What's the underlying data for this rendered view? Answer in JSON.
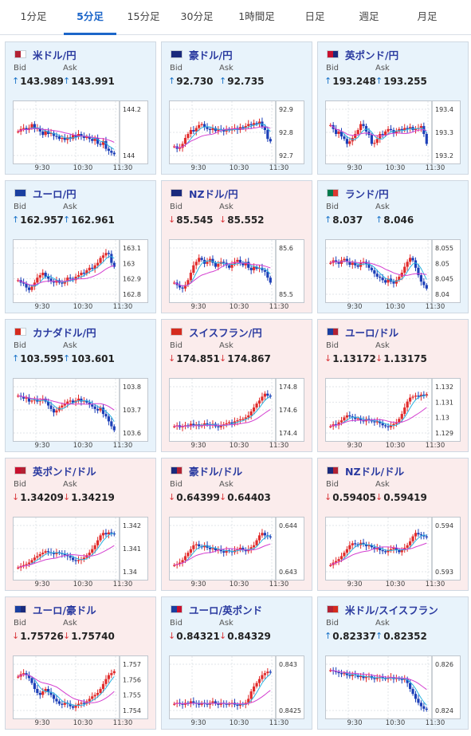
{
  "tabs": [
    {
      "label": "1分足",
      "active": false
    },
    {
      "label": "5分足",
      "active": true
    },
    {
      "label": "15分足",
      "active": false
    },
    {
      "label": "30分足",
      "active": false
    },
    {
      "label": "1時間足",
      "active": false
    },
    {
      "label": "日足",
      "active": false
    },
    {
      "label": "週足",
      "active": false
    },
    {
      "label": "月足",
      "active": false
    }
  ],
  "labels": {
    "bid": "Bid",
    "ask": "Ask"
  },
  "colors": {
    "up_bg": "#e8f3fb",
    "down_bg": "#fbecec",
    "candle_up": "#e12c2c",
    "candle_down": "#1c3fb8",
    "ma_short": "#2bb2e0",
    "ma_long": "#d43fd0",
    "tab_accent": "#1c66c9"
  },
  "pairs": [
    {
      "name": "米ドル/円",
      "flag": [
        "#b22234",
        "#ffffff"
      ],
      "trend": "up",
      "bid_dir": "up",
      "bid": "143.989",
      "ask_dir": "up",
      "ask": "143.991",
      "chart": {
        "yticks": [
          "144.2",
          "144"
        ],
        "xticks": [
          "9:30",
          "10:30",
          "11:30"
        ],
        "shape": [
          0.55,
          0.6,
          0.62,
          0.58,
          0.62,
          0.7,
          0.6,
          0.62,
          0.55,
          0.48,
          0.56,
          0.5,
          0.52,
          0.46,
          0.45,
          0.4,
          0.42,
          0.38,
          0.43,
          0.4,
          0.48,
          0.44,
          0.5,
          0.46,
          0.42,
          0.45,
          0.4,
          0.36,
          0.42,
          0.3,
          0.28,
          0.36,
          0.2,
          0.16,
          0.12,
          0.09
        ]
      }
    },
    {
      "name": "豪ドル/円",
      "flag": [
        "#1a2a7c",
        "#1a2a7c"
      ],
      "trend": "up",
      "bid_dir": "up",
      "bid": "92.730",
      "ask_dir": "up",
      "ask": "92.735",
      "chart": {
        "yticks": [
          "92.9",
          "92.8",
          "92.7"
        ],
        "xticks": [
          "9:30",
          "10:30",
          "11:30"
        ],
        "shape": [
          0.25,
          0.2,
          0.22,
          0.3,
          0.42,
          0.5,
          0.58,
          0.55,
          0.62,
          0.68,
          0.7,
          0.64,
          0.6,
          0.58,
          0.62,
          0.56,
          0.6,
          0.58,
          0.55,
          0.6,
          0.57,
          0.6,
          0.62,
          0.58,
          0.64,
          0.62,
          0.66,
          0.7,
          0.68,
          0.72,
          0.7,
          0.75,
          0.65,
          0.58,
          0.4,
          0.35
        ]
      }
    },
    {
      "name": "英ポンド/円",
      "flag": [
        "#c8102e",
        "#1a2a7c"
      ],
      "trend": "up",
      "bid_dir": "up",
      "bid": "193.248",
      "ask_dir": "up",
      "ask": "193.255",
      "chart": {
        "yticks": [
          "193.4",
          "193.3",
          "193.2"
        ],
        "xticks": [
          "9:30",
          "10:30",
          "11:30"
        ],
        "shape": [
          0.68,
          0.6,
          0.5,
          0.55,
          0.45,
          0.4,
          0.3,
          0.35,
          0.42,
          0.5,
          0.58,
          0.7,
          0.66,
          0.55,
          0.48,
          0.3,
          0.32,
          0.4,
          0.5,
          0.48,
          0.55,
          0.6,
          0.58,
          0.52,
          0.55,
          0.6,
          0.58,
          0.62,
          0.6,
          0.64,
          0.58,
          0.6,
          0.62,
          0.66,
          0.5,
          0.3
        ]
      }
    },
    {
      "name": "ユーロ/円",
      "flag": [
        "#1a3fa0",
        "#1a3fa0"
      ],
      "trend": "up",
      "bid_dir": "up",
      "bid": "162.957",
      "ask_dir": "up",
      "ask": "162.961",
      "chart": {
        "yticks": [
          "163.1",
          "163",
          "162.9",
          "162.8"
        ],
        "xticks": [
          "9:30",
          "10:30",
          "11:30"
        ],
        "shape": [
          0.35,
          0.3,
          0.28,
          0.2,
          0.15,
          0.22,
          0.3,
          0.4,
          0.45,
          0.5,
          0.42,
          0.38,
          0.32,
          0.3,
          0.35,
          0.3,
          0.28,
          0.32,
          0.4,
          0.38,
          0.35,
          0.42,
          0.45,
          0.5,
          0.48,
          0.55,
          0.6,
          0.58,
          0.65,
          0.7,
          0.8,
          0.85,
          0.9,
          0.88,
          0.7,
          0.62
        ]
      }
    },
    {
      "name": "NZドル/円",
      "flag": [
        "#1a2a7c",
        "#1a2a7c"
      ],
      "trend": "down",
      "bid_dir": "down",
      "bid": "85.545",
      "ask_dir": "down",
      "ask": "85.552",
      "chart": {
        "yticks": [
          "85.6",
          "85.5"
        ],
        "xticks": [
          "9:30",
          "10:30",
          "11:30"
        ],
        "shape": [
          0.3,
          0.25,
          0.2,
          0.18,
          0.25,
          0.35,
          0.5,
          0.65,
          0.72,
          0.8,
          0.76,
          0.68,
          0.72,
          0.78,
          0.7,
          0.62,
          0.68,
          0.72,
          0.7,
          0.65,
          0.6,
          0.68,
          0.72,
          0.76,
          0.7,
          0.65,
          0.72,
          0.6,
          0.55,
          0.62,
          0.58,
          0.6,
          0.55,
          0.52,
          0.4,
          0.3
        ]
      }
    },
    {
      "name": "ランド/円",
      "flag": [
        "#007a4d",
        "#de3831"
      ],
      "trend": "up",
      "bid_dir": "up",
      "bid": "8.037",
      "ask_dir": "up",
      "ask": "8.046",
      "chart": {
        "yticks": [
          "8.055",
          "8.05",
          "8.045",
          "8.04"
        ],
        "xticks": [
          "9:30",
          "10:30",
          "11:30"
        ],
        "shape": [
          0.7,
          0.75,
          0.72,
          0.68,
          0.75,
          0.78,
          0.72,
          0.66,
          0.7,
          0.65,
          0.62,
          0.7,
          0.72,
          0.68,
          0.6,
          0.55,
          0.48,
          0.42,
          0.4,
          0.35,
          0.3,
          0.38,
          0.32,
          0.28,
          0.35,
          0.42,
          0.5,
          0.62,
          0.72,
          0.8,
          0.75,
          0.6,
          0.45,
          0.32,
          0.25,
          0.18
        ]
      }
    },
    {
      "name": "カナダドル/円",
      "flag": [
        "#d52b1e",
        "#ffffff"
      ],
      "trend": "up",
      "bid_dir": "up",
      "bid": "103.595",
      "ask_dir": "up",
      "ask": "103.601",
      "chart": {
        "yticks": [
          "103.8",
          "103.7",
          "103.6"
        ],
        "xticks": [
          "9:30",
          "10:30",
          "11:30"
        ],
        "shape": [
          0.82,
          0.8,
          0.76,
          0.78,
          0.7,
          0.72,
          0.74,
          0.7,
          0.72,
          0.76,
          0.7,
          0.62,
          0.55,
          0.48,
          0.52,
          0.58,
          0.62,
          0.66,
          0.7,
          0.72,
          0.68,
          0.72,
          0.76,
          0.7,
          0.72,
          0.68,
          0.64,
          0.6,
          0.55,
          0.52,
          0.58,
          0.45,
          0.4,
          0.3,
          0.2,
          0.12
        ]
      }
    },
    {
      "name": "スイスフラン/円",
      "flag": [
        "#d52b1e",
        "#d52b1e"
      ],
      "trend": "down",
      "bid_dir": "down",
      "bid": "174.851",
      "ask_dir": "down",
      "ask": "174.867",
      "chart": {
        "yticks": [
          "174.8",
          "174.6",
          "174.4"
        ],
        "xticks": [
          "9:30",
          "10:30",
          "11:30"
        ],
        "shape": [
          0.2,
          0.22,
          0.18,
          0.2,
          0.22,
          0.2,
          0.25,
          0.22,
          0.24,
          0.2,
          0.22,
          0.26,
          0.24,
          0.22,
          0.25,
          0.2,
          0.18,
          0.22,
          0.24,
          0.26,
          0.28,
          0.25,
          0.3,
          0.32,
          0.34,
          0.35,
          0.38,
          0.42,
          0.5,
          0.58,
          0.66,
          0.72,
          0.8,
          0.86,
          0.82,
          0.8
        ]
      }
    },
    {
      "name": "ユーロ/ドル",
      "flag": [
        "#1a3fa0",
        "#b22234"
      ],
      "trend": "down",
      "bid_dir": "down",
      "bid": "1.13172",
      "ask_dir": "down",
      "ask": "1.13175",
      "chart": {
        "yticks": [
          "1.132",
          "1.131",
          "1.13",
          "1.129"
        ],
        "xticks": [
          "9:30",
          "10:30",
          "11:30"
        ],
        "shape": [
          0.2,
          0.24,
          0.22,
          0.28,
          0.32,
          0.38,
          0.42,
          0.4,
          0.38,
          0.35,
          0.36,
          0.32,
          0.3,
          0.35,
          0.32,
          0.3,
          0.28,
          0.3,
          0.26,
          0.22,
          0.2,
          0.18,
          0.22,
          0.25,
          0.28,
          0.35,
          0.45,
          0.58,
          0.7,
          0.78,
          0.8,
          0.82,
          0.8,
          0.84,
          0.82,
          0.85
        ]
      }
    },
    {
      "name": "英ポンド/ドル",
      "flag": [
        "#c8102e",
        "#b22234"
      ],
      "trend": "down",
      "bid_dir": "down",
      "bid": "1.34209",
      "ask_dir": "down",
      "ask": "1.34219",
      "chart": {
        "yticks": [
          "1.342",
          "1.341",
          "1.34"
        ],
        "xticks": [
          "9:30",
          "10:30",
          "11:30"
        ],
        "shape": [
          0.15,
          0.18,
          0.2,
          0.22,
          0.25,
          0.3,
          0.35,
          0.38,
          0.42,
          0.45,
          0.48,
          0.46,
          0.44,
          0.42,
          0.46,
          0.44,
          0.42,
          0.4,
          0.38,
          0.35,
          0.3,
          0.28,
          0.3,
          0.32,
          0.35,
          0.4,
          0.45,
          0.52,
          0.6,
          0.7,
          0.8,
          0.85,
          0.82,
          0.86,
          0.84,
          0.82
        ]
      }
    },
    {
      "name": "豪ドル/ドル",
      "flag": [
        "#1a2a7c",
        "#b22234"
      ],
      "trend": "down",
      "bid_dir": "down",
      "bid": "0.64399",
      "ask_dir": "down",
      "ask": "0.64403",
      "chart": {
        "yticks": [
          "0.644",
          "0.643"
        ],
        "xticks": [
          "9:30",
          "10:30",
          "11:30"
        ],
        "shape": [
          0.2,
          0.22,
          0.25,
          0.3,
          0.38,
          0.45,
          0.52,
          0.6,
          0.62,
          0.58,
          0.56,
          0.6,
          0.55,
          0.52,
          0.54,
          0.5,
          0.52,
          0.48,
          0.45,
          0.5,
          0.48,
          0.46,
          0.5,
          0.52,
          0.55,
          0.5,
          0.48,
          0.52,
          0.56,
          0.6,
          0.7,
          0.8,
          0.85,
          0.8,
          0.78,
          0.76
        ]
      }
    },
    {
      "name": "NZドル/ドル",
      "flag": [
        "#1a2a7c",
        "#b22234"
      ],
      "trend": "down",
      "bid_dir": "down",
      "bid": "0.59405",
      "ask_dir": "down",
      "ask": "0.59419",
      "chart": {
        "yticks": [
          "0.594",
          "0.593"
        ],
        "xticks": [
          "9:30",
          "10:30",
          "11:30"
        ],
        "shape": [
          0.2,
          0.25,
          0.28,
          0.32,
          0.38,
          0.45,
          0.52,
          0.6,
          0.64,
          0.62,
          0.6,
          0.65,
          0.62,
          0.58,
          0.6,
          0.56,
          0.52,
          0.55,
          0.5,
          0.48,
          0.46,
          0.5,
          0.52,
          0.55,
          0.5,
          0.46,
          0.5,
          0.55,
          0.6,
          0.68,
          0.78,
          0.85,
          0.82,
          0.8,
          0.78,
          0.76
        ]
      }
    },
    {
      "name": "ユーロ/豪ドル",
      "flag": [
        "#1a3fa0",
        "#1a2a7c"
      ],
      "trend": "down",
      "bid_dir": "down",
      "bid": "1.75726",
      "ask_dir": "down",
      "ask": "1.75740",
      "chart": {
        "yticks": [
          "1.757",
          "1.756",
          "1.755",
          "1.754"
        ],
        "xticks": [
          "9:30",
          "10:30",
          "11:30"
        ],
        "shape": [
          0.75,
          0.8,
          0.82,
          0.78,
          0.72,
          0.62,
          0.5,
          0.42,
          0.38,
          0.45,
          0.5,
          0.44,
          0.38,
          0.3,
          0.25,
          0.2,
          0.18,
          0.22,
          0.2,
          0.15,
          0.12,
          0.16,
          0.2,
          0.22,
          0.2,
          0.25,
          0.3,
          0.35,
          0.38,
          0.42,
          0.5,
          0.6,
          0.7,
          0.78,
          0.82,
          0.86
        ]
      }
    },
    {
      "name": "ユーロ/英ポンド",
      "flag": [
        "#1a3fa0",
        "#c8102e"
      ],
      "trend": "up",
      "bid_dir": "down",
      "bid": "0.84321",
      "ask_dir": "down",
      "ask": "0.84329",
      "chart": {
        "yticks": [
          "0.843",
          "0.8425"
        ],
        "xticks": [
          "9:30",
          "10:30",
          "11:30"
        ],
        "shape": [
          0.2,
          0.22,
          0.2,
          0.18,
          0.22,
          0.2,
          0.25,
          0.22,
          0.2,
          0.18,
          0.22,
          0.2,
          0.18,
          0.22,
          0.25,
          0.2,
          0.18,
          0.22,
          0.2,
          0.18,
          0.2,
          0.22,
          0.18,
          0.16,
          0.2,
          0.18,
          0.22,
          0.3,
          0.45,
          0.55,
          0.62,
          0.7,
          0.78,
          0.82,
          0.85,
          0.84
        ]
      }
    },
    {
      "name": "米ドル/スイスフラン",
      "flag": [
        "#b22234",
        "#d52b1e"
      ],
      "trend": "up",
      "bid_dir": "up",
      "bid": "0.82337",
      "ask_dir": "up",
      "ask": "0.82352",
      "chart": {
        "yticks": [
          "0.826",
          "0.824"
        ],
        "xticks": [
          "9:30",
          "10:30",
          "11:30"
        ],
        "shape": [
          0.88,
          0.86,
          0.84,
          0.82,
          0.8,
          0.82,
          0.78,
          0.76,
          0.8,
          0.78,
          0.74,
          0.76,
          0.72,
          0.74,
          0.76,
          0.72,
          0.7,
          0.72,
          0.74,
          0.72,
          0.7,
          0.72,
          0.74,
          0.7,
          0.72,
          0.7,
          0.68,
          0.7,
          0.62,
          0.5,
          0.4,
          0.3,
          0.22,
          0.15,
          0.1,
          0.08
        ]
      }
    }
  ]
}
